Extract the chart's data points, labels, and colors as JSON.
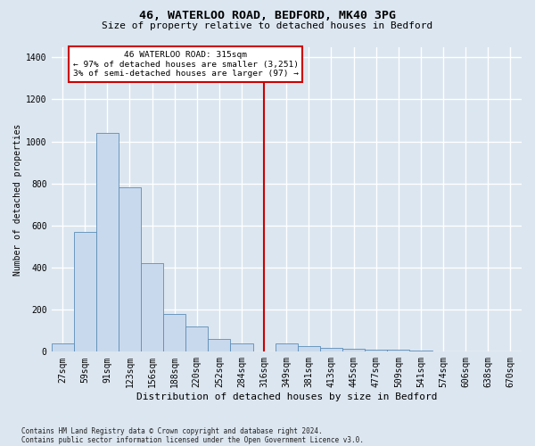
{
  "title_line1": "46, WATERLOO ROAD, BEDFORD, MK40 3PG",
  "title_line2": "Size of property relative to detached houses in Bedford",
  "xlabel": "Distribution of detached houses by size in Bedford",
  "ylabel": "Number of detached properties",
  "footnote": "Contains HM Land Registry data © Crown copyright and database right 2024.\nContains public sector information licensed under the Open Government Licence v3.0.",
  "bar_labels": [
    "27sqm",
    "59sqm",
    "91sqm",
    "123sqm",
    "156sqm",
    "188sqm",
    "220sqm",
    "252sqm",
    "284sqm",
    "316sqm",
    "349sqm",
    "381sqm",
    "413sqm",
    "445sqm",
    "477sqm",
    "509sqm",
    "541sqm",
    "574sqm",
    "606sqm",
    "638sqm",
    "670sqm"
  ],
  "bar_values": [
    40,
    570,
    1040,
    780,
    420,
    180,
    120,
    60,
    40,
    0,
    40,
    25,
    20,
    15,
    10,
    8,
    5,
    3,
    2,
    1,
    0
  ],
  "bar_color": "#c9d9ed",
  "bar_edgecolor": "#5b8db8",
  "vline_color": "#cc0000",
  "annotation_line1": "46 WATERLOO ROAD: 315sqm",
  "annotation_line2": "← 97% of detached houses are smaller (3,251)",
  "annotation_line3": "3% of semi-detached houses are larger (97) →",
  "annotation_box_edgecolor": "#cc0000",
  "vline_index": 9.0,
  "ylim": [
    0,
    1450
  ],
  "yticks": [
    0,
    200,
    400,
    600,
    800,
    1000,
    1200,
    1400
  ],
  "bg_color": "#dce6f0",
  "grid_color": "#ffffff",
  "title1_fontsize": 9.5,
  "title2_fontsize": 8.0,
  "ylabel_fontsize": 7.0,
  "xlabel_fontsize": 8.0,
  "tick_fontsize": 7.0,
  "annot_fontsize": 6.8,
  "footnote_fontsize": 5.5
}
